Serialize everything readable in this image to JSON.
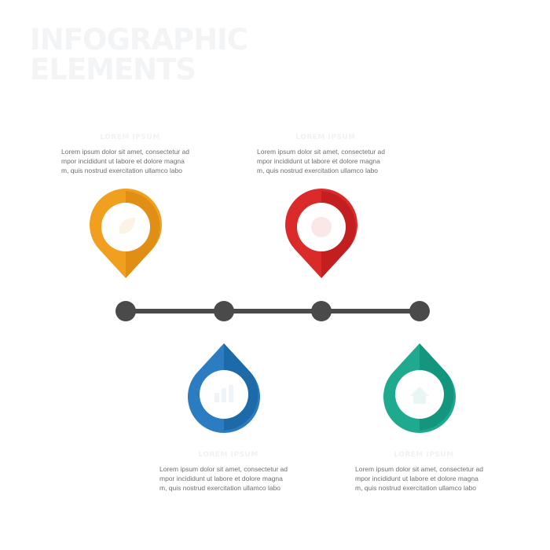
{
  "title": "INFOGRAPHIC\nELEMENTS",
  "colors": {
    "line": "#4a4a4a",
    "pin1": "#f0a01e",
    "pin1_dark": "#e08e14",
    "pin2": "#2c7cc1",
    "pin2_dark": "#1d6aa8",
    "pin3": "#db2a2a",
    "pin3_dark": "#c41f20",
    "pin4": "#1fa98f",
    "pin4_dark": "#14957d"
  },
  "items": [
    {
      "heading": "LOREM IPSUM",
      "lines": [
        "Lorem ipsum dolor sit amet, consectetur ad",
        "mpor incididunt ut labore et dolore magna",
        "m, quis nostrud exercitation ullamco labo"
      ],
      "icon": "leaf-icon"
    },
    {
      "heading": "LOREM IPSUM",
      "lines": [
        "Lorem ipsum dolor sit amet, consectetur ad",
        "mpor incididunt ut labore et dolore magna",
        "m, quis nostrud exercitation ullamco labo"
      ],
      "icon": "chart-icon"
    },
    {
      "heading": "LOREM IPSUM",
      "lines": [
        "Lorem ipsum dolor sit amet, consectetur ad",
        "mpor incididunt ut labore et dolore magna",
        "m, quis nostrud exercitation ullamco labo"
      ],
      "icon": "heart-icon"
    },
    {
      "heading": "LOREM IPSUM",
      "lines": [
        "Lorem ipsum dolor sit amet, consectetur ad",
        "mpor incididunt ut labore et dolore magna",
        "m, quis nostrud exercitation ullamco labo"
      ],
      "icon": "home-icon"
    }
  ]
}
